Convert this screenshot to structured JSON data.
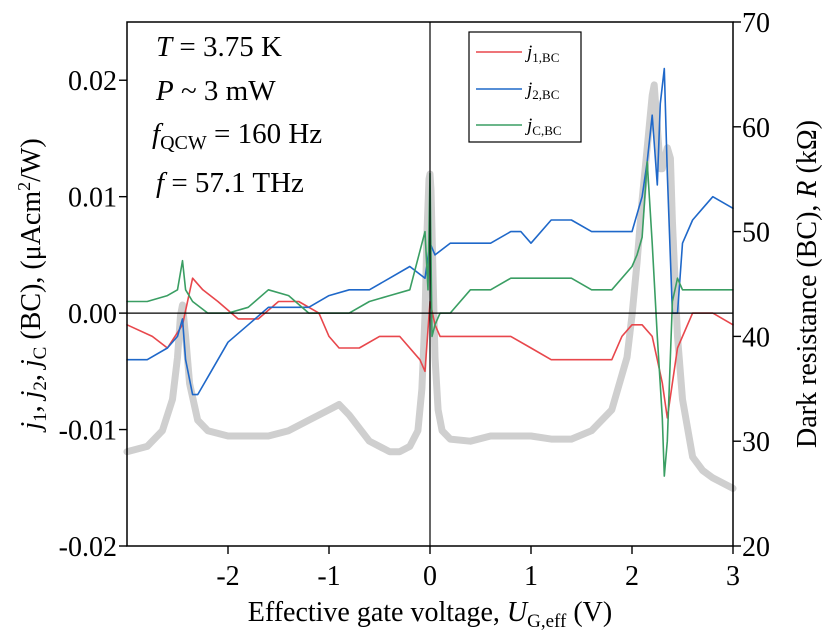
{
  "chart_data": {
    "type": "line",
    "title": "",
    "xlabel": "Effective gate voltage, U_G,eff (V)",
    "xlabel_parts": {
      "pre": "Effective gate voltage, ",
      "sym": "U",
      "sub": "G,eff",
      "post": " (V)"
    },
    "ylabel_left": "j1, j2, jC (BC), (μAcm²/W)",
    "ylabel_left_parts": {
      "j": "j",
      "s1": "1",
      "s2": "2",
      "sC": "C",
      "mid": " (BC), (μAcm",
      "sup": "2",
      "end": "/W)"
    },
    "ylabel_right": "Dark resistance (BC), R (kΩ)",
    "ylabel_right_parts": {
      "pre": "Dark resistance (BC), ",
      "sym": "R",
      "post": " (kΩ)"
    },
    "xlim": [
      -3,
      3
    ],
    "ylim_left": [
      -0.02,
      0.025
    ],
    "ylim_right": [
      20,
      70
    ],
    "x_ticks": [
      -2,
      -1,
      0,
      1,
      2,
      3
    ],
    "x_tick_labels": [
      "-2",
      "-1",
      "0",
      "1",
      "2",
      "3"
    ],
    "y_left_ticks": [
      -0.02,
      -0.01,
      0.0,
      0.01,
      0.02
    ],
    "y_left_tick_labels": [
      "-0.02",
      "-0.01",
      "0.00",
      "0.01",
      "0.02"
    ],
    "y_right_ticks": [
      20,
      30,
      40,
      50,
      60,
      70
    ],
    "y_right_tick_labels": [
      "20",
      "30",
      "40",
      "50",
      "60",
      "70"
    ],
    "annotations": [
      {
        "sym": "T",
        "sub": "",
        "rest": " = 3.75 K"
      },
      {
        "sym": "P",
        "sub": "",
        "rest": " ~ 3 mW"
      },
      {
        "sym": "f",
        "sub": "QCW",
        "rest": " = 160 Hz"
      },
      {
        "sym": "f",
        "sub": "",
        "rest": " = 57.1 THz"
      }
    ],
    "legend_position": "top-center",
    "reference_lines": {
      "x": 0,
      "y": 0
    },
    "series": [
      {
        "name": "j1,BC",
        "label_sym": "j",
        "label_sub": "1,BC",
        "axis": "left",
        "color": "#e8474c",
        "width": 1.6,
        "x": [
          -3.0,
          -2.75,
          -2.6,
          -2.45,
          -2.35,
          -2.25,
          -2.1,
          -1.9,
          -1.7,
          -1.5,
          -1.3,
          -1.1,
          -1.0,
          -0.9,
          -0.7,
          -0.5,
          -0.3,
          -0.1,
          -0.05,
          0.0,
          0.05,
          0.1,
          0.2,
          0.4,
          0.6,
          0.8,
          1.0,
          1.2,
          1.4,
          1.6,
          1.8,
          1.9,
          2.0,
          2.1,
          2.2,
          2.25,
          2.3,
          2.35,
          2.45,
          2.6,
          2.8,
          3.0
        ],
        "y": [
          -0.001,
          -0.002,
          -0.003,
          -0.001,
          0.003,
          0.002,
          0.001,
          -0.0005,
          -0.0005,
          0.001,
          0.001,
          0.0,
          -0.002,
          -0.003,
          -0.003,
          -0.002,
          -0.002,
          -0.004,
          -0.005,
          0.001,
          -0.001,
          -0.002,
          -0.002,
          -0.002,
          -0.002,
          -0.002,
          -0.003,
          -0.004,
          -0.004,
          -0.004,
          -0.004,
          -0.002,
          -0.001,
          -0.001,
          -0.002,
          -0.004,
          -0.006,
          -0.009,
          -0.003,
          0.0,
          0.0,
          -0.001
        ]
      },
      {
        "name": "j2,BC",
        "label_sym": "j",
        "label_sub": "2,BC",
        "axis": "left",
        "color": "#1f68c9",
        "width": 1.6,
        "x": [
          -3.0,
          -2.8,
          -2.6,
          -2.5,
          -2.45,
          -2.42,
          -2.35,
          -2.3,
          -2.2,
          -2.0,
          -1.8,
          -1.6,
          -1.4,
          -1.2,
          -1.0,
          -0.8,
          -0.6,
          -0.4,
          -0.2,
          -0.05,
          0.0,
          0.05,
          0.2,
          0.4,
          0.6,
          0.8,
          0.9,
          1.0,
          1.2,
          1.4,
          1.6,
          1.8,
          2.0,
          2.1,
          2.15,
          2.2,
          2.25,
          2.28,
          2.32,
          2.35,
          2.4,
          2.45,
          2.5,
          2.6,
          2.7,
          2.8,
          3.0
        ],
        "y": [
          -0.004,
          -0.004,
          -0.003,
          -0.002,
          -0.0005,
          -0.004,
          -0.007,
          -0.007,
          -0.0055,
          -0.0025,
          -0.001,
          0.0005,
          0.0005,
          0.0005,
          0.0015,
          0.002,
          0.002,
          0.003,
          0.004,
          0.003,
          0.006,
          0.005,
          0.006,
          0.006,
          0.006,
          0.007,
          0.007,
          0.006,
          0.008,
          0.008,
          0.007,
          0.007,
          0.007,
          0.01,
          0.013,
          0.017,
          0.011,
          0.018,
          0.021,
          0.012,
          0.0,
          0.0,
          0.006,
          0.008,
          0.009,
          0.01,
          0.009
        ]
      },
      {
        "name": "jC,BC",
        "label_sym": "j",
        "label_sub": "C,BC",
        "axis": "left",
        "color": "#3a9e63",
        "width": 1.6,
        "x": [
          -3.0,
          -2.8,
          -2.6,
          -2.5,
          -2.45,
          -2.42,
          -2.35,
          -2.2,
          -2.0,
          -1.8,
          -1.6,
          -1.4,
          -1.2,
          -1.0,
          -0.8,
          -0.6,
          -0.4,
          -0.2,
          -0.05,
          -0.02,
          0.0,
          0.02,
          0.05,
          0.1,
          0.2,
          0.4,
          0.6,
          0.8,
          1.0,
          1.2,
          1.4,
          1.6,
          1.8,
          2.0,
          2.05,
          2.1,
          2.15,
          2.2,
          2.25,
          2.3,
          2.32,
          2.35,
          2.4,
          2.45,
          2.5,
          2.6,
          2.8,
          3.0
        ],
        "y": [
          0.001,
          0.001,
          0.0015,
          0.002,
          0.0045,
          0.002,
          0.001,
          0.0,
          0.0,
          0.0005,
          0.002,
          0.0015,
          0.0,
          0.0,
          0.0,
          0.001,
          0.0015,
          0.002,
          0.007,
          0.002,
          0.012,
          -0.002,
          -0.001,
          0.0,
          0.0,
          0.002,
          0.002,
          0.003,
          0.003,
          0.003,
          0.003,
          0.002,
          0.002,
          0.004,
          0.005,
          0.0065,
          0.013,
          0.006,
          -0.002,
          -0.009,
          -0.014,
          -0.011,
          0.001,
          0.003,
          0.002,
          0.002,
          0.002,
          0.002
        ]
      },
      {
        "name": "Dark resistance",
        "axis": "right",
        "color": "#cfcfcf",
        "width": 7,
        "x": [
          -3.0,
          -2.8,
          -2.65,
          -2.55,
          -2.5,
          -2.47,
          -2.45,
          -2.42,
          -2.38,
          -2.3,
          -2.2,
          -2.0,
          -1.8,
          -1.6,
          -1.4,
          -1.2,
          -1.0,
          -0.9,
          -0.8,
          -0.6,
          -0.4,
          -0.3,
          -0.2,
          -0.12,
          -0.08,
          -0.05,
          -0.03,
          -0.01,
          0.0,
          0.01,
          0.03,
          0.05,
          0.08,
          0.12,
          0.2,
          0.4,
          0.6,
          0.8,
          1.0,
          1.2,
          1.4,
          1.6,
          1.8,
          1.95,
          2.0,
          2.05,
          2.1,
          2.15,
          2.2,
          2.22,
          2.25,
          2.28,
          2.3,
          2.35,
          2.38,
          2.4,
          2.45,
          2.5,
          2.6,
          2.7,
          2.8,
          2.9,
          3.0
        ],
        "y": [
          29,
          29.5,
          31,
          34,
          38,
          42,
          43,
          40,
          35.5,
          32,
          31,
          30.5,
          30.5,
          30.5,
          31,
          32,
          33,
          33.5,
          32.5,
          30,
          29,
          29,
          29.5,
          31,
          35,
          42,
          50,
          55,
          55.5,
          54,
          46,
          38,
          33,
          31,
          30.2,
          30,
          30.5,
          30.5,
          30.5,
          30.2,
          30.2,
          31,
          33,
          38,
          42,
          47,
          53,
          58,
          63,
          64,
          60,
          56,
          56,
          58,
          57,
          51,
          40,
          34,
          28.5,
          27.2,
          26.5,
          26,
          25.5
        ]
      }
    ]
  }
}
